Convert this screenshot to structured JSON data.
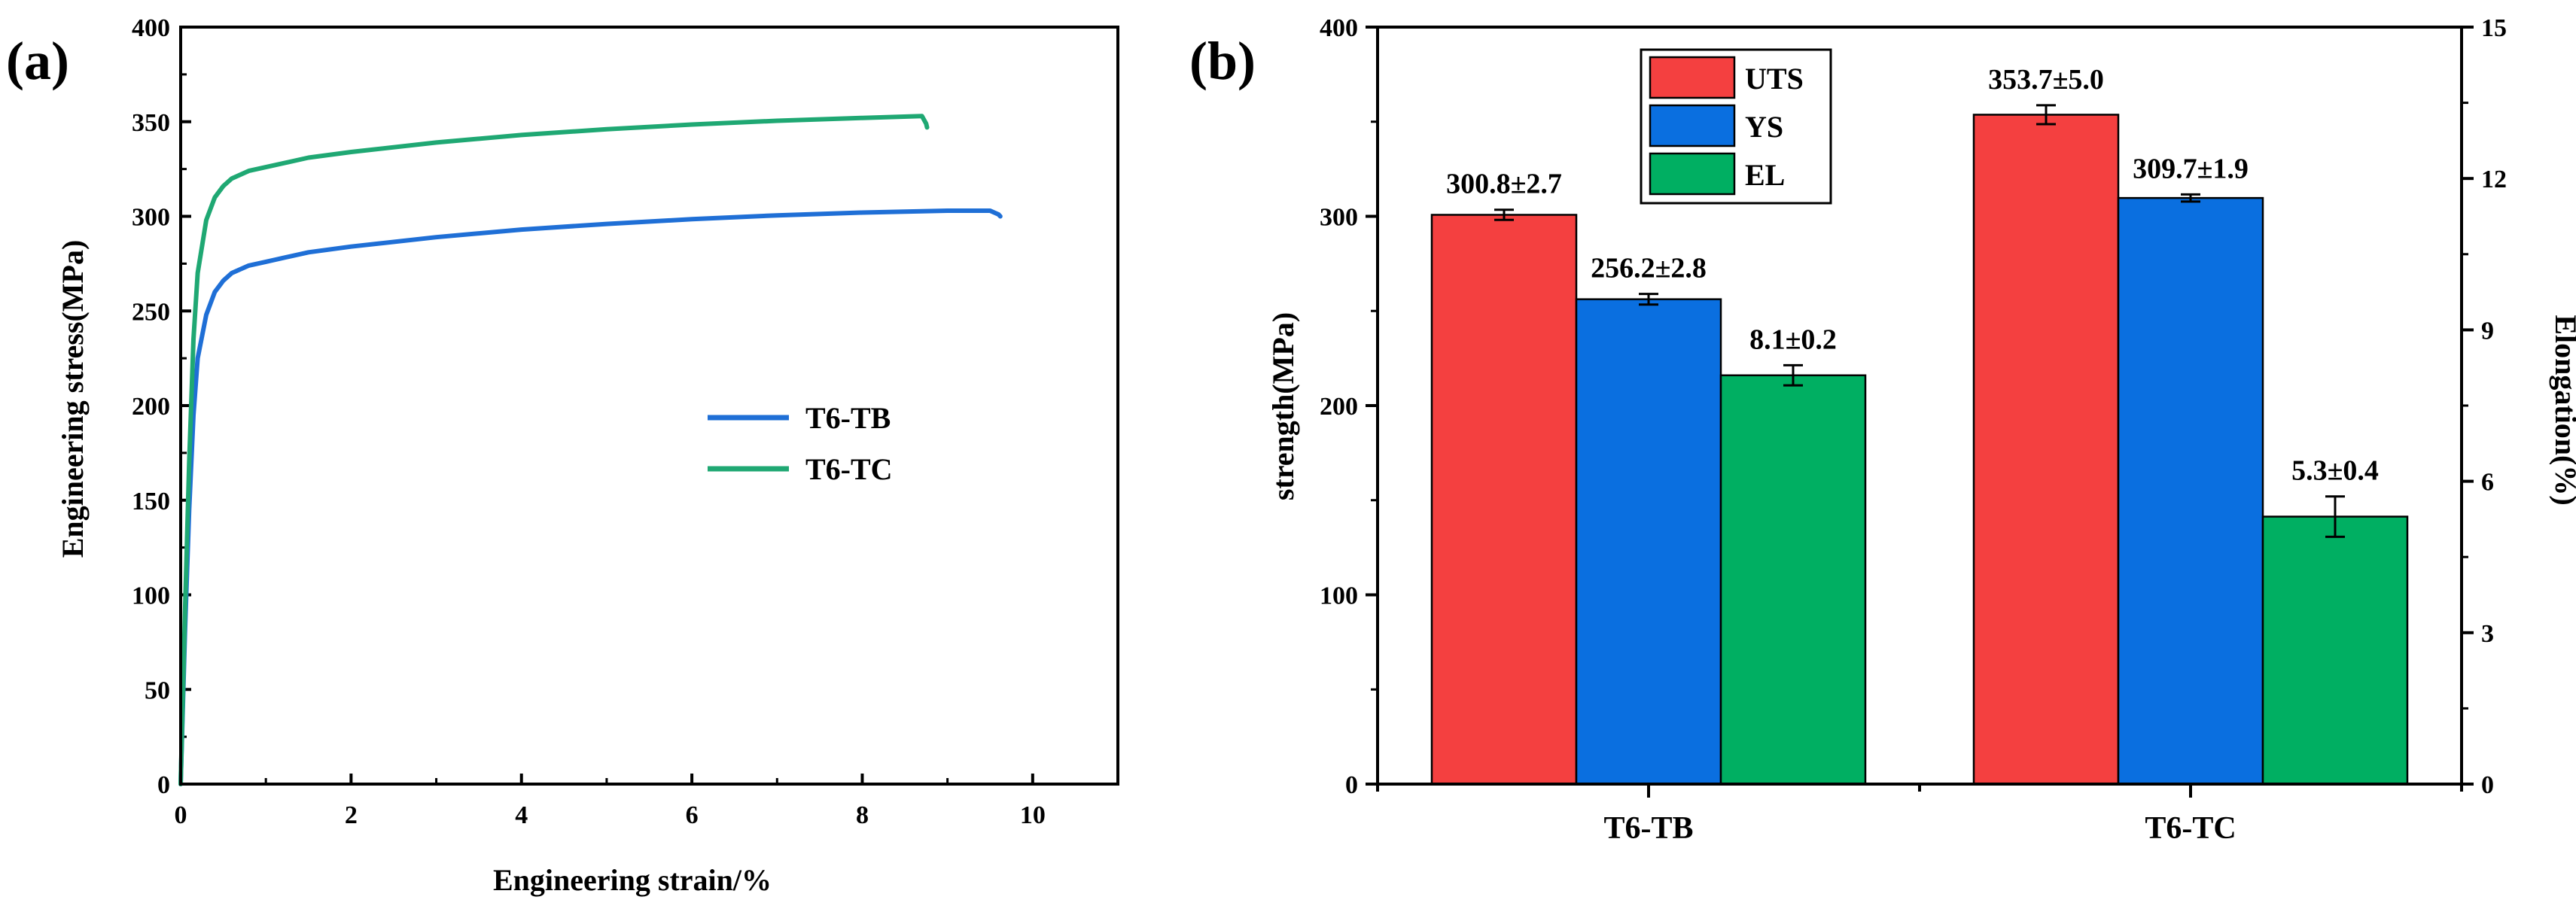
{
  "chart_data": [
    {
      "type": "line",
      "panel_label": "(a)",
      "xlabel": "Engineering strain/%",
      "ylabel": "Engineering stress(MPa)",
      "xlim": [
        0,
        11
      ],
      "ylim": [
        0,
        400
      ],
      "x_ticks": [
        0,
        2,
        4,
        6,
        8,
        10
      ],
      "y_ticks": [
        0,
        50,
        100,
        150,
        200,
        250,
        300,
        350,
        400
      ],
      "legend_position": "center-right",
      "grid": false,
      "series": [
        {
          "name": "T6-TB",
          "color": "#1f6fd6",
          "points": [
            [
              0,
              0
            ],
            [
              0.05,
              80
            ],
            [
              0.1,
              145
            ],
            [
              0.15,
              195
            ],
            [
              0.2,
              225
            ],
            [
              0.3,
              248
            ],
            [
              0.4,
              260
            ],
            [
              0.5,
              266
            ],
            [
              0.6,
              270
            ],
            [
              0.8,
              274
            ],
            [
              1,
              276
            ],
            [
              1.5,
              281
            ],
            [
              2,
              284
            ],
            [
              3,
              289
            ],
            [
              4,
              293
            ],
            [
              5,
              296
            ],
            [
              6,
              298.5
            ],
            [
              7,
              300.5
            ],
            [
              8,
              302
            ],
            [
              9,
              303
            ],
            [
              9.5,
              303
            ],
            [
              9.6,
              301
            ],
            [
              9.62,
              300
            ]
          ]
        },
        {
          "name": "T6-TC",
          "color": "#1fa873",
          "points": [
            [
              0,
              0
            ],
            [
              0.05,
              90
            ],
            [
              0.1,
              170
            ],
            [
              0.15,
              235
            ],
            [
              0.2,
              270
            ],
            [
              0.3,
              298
            ],
            [
              0.4,
              310
            ],
            [
              0.5,
              316
            ],
            [
              0.6,
              320
            ],
            [
              0.8,
              324
            ],
            [
              1,
              326
            ],
            [
              1.5,
              331
            ],
            [
              2,
              334
            ],
            [
              3,
              339
            ],
            [
              4,
              343
            ],
            [
              5,
              346
            ],
            [
              6,
              348.5
            ],
            [
              7,
              350.5
            ],
            [
              8,
              352
            ],
            [
              8.7,
              353
            ],
            [
              8.75,
              349
            ],
            [
              8.76,
              347
            ]
          ]
        }
      ]
    },
    {
      "type": "bar",
      "panel_label": "(b)",
      "categories": [
        "T6-TB",
        "T6-TC"
      ],
      "ylabel": "strength(MPa)",
      "y2label": "Elongation(%)",
      "ylim": [
        0,
        400
      ],
      "y_ticks": [
        0,
        100,
        200,
        300,
        400
      ],
      "y2lim": [
        0,
        15
      ],
      "y2_ticks": [
        0,
        3,
        6,
        9,
        12,
        15
      ],
      "legend_position": "top-left",
      "grid": false,
      "series": [
        {
          "name": "UTS",
          "axis": "left",
          "color": "#f44040",
          "values": [
            300.8,
            353.7
          ],
          "errors": [
            2.7,
            5.0
          ],
          "labels": [
            "300.8±2.7",
            "353.7±5.0"
          ]
        },
        {
          "name": "YS",
          "axis": "left",
          "color": "#0a6fe0",
          "values": [
            256.2,
            309.7
          ],
          "errors": [
            2.8,
            1.9
          ],
          "labels": [
            "256.2±2.8",
            "309.7±1.9"
          ]
        },
        {
          "name": "EL",
          "axis": "right",
          "color": "#00af62",
          "values": [
            8.1,
            5.3
          ],
          "errors": [
            0.2,
            0.4
          ],
          "labels": [
            "8.1±0.2",
            "5.3±0.4"
          ]
        }
      ]
    }
  ]
}
